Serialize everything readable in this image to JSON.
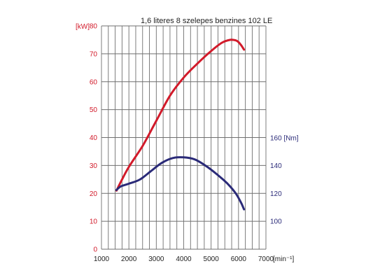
{
  "chart_data": {
    "type": "line",
    "title": "1,6 literes 8 szelepes benzines 102 LE",
    "xlabel": "[min⁻¹]",
    "xlim": [
      1000,
      7000
    ],
    "xticks": [
      "1000",
      "2000",
      "3000",
      "4000",
      "5000",
      "6000",
      "7000"
    ],
    "grid": true,
    "colors": {
      "power": "#d21a2a",
      "torque": "#2a2a78",
      "grid": "#6f6f6f"
    },
    "y_left": {
      "unit": "[kW]",
      "ylim": [
        0,
        80
      ],
      "ticks": [
        "0",
        "10",
        "20",
        "30",
        "40",
        "50",
        "60",
        "70",
        "80"
      ]
    },
    "y_right": {
      "unit": "160 [Nm]",
      "ylim": [
        100,
        160
      ],
      "ticks": [
        "100",
        "120",
        "140"
      ]
    },
    "series": [
      {
        "axis": "left",
        "x": [
          1550,
          1700,
          2000,
          2500,
          3000,
          3500,
          4000,
          4500,
          5000,
          5400,
          5700,
          5900,
          6000,
          6100,
          6200
        ],
        "y": [
          21,
          24,
          29.5,
          37,
          46,
          55,
          61.5,
          66.5,
          71,
          74,
          75,
          74.8,
          74.2,
          73,
          71.5
        ]
      },
      {
        "axis": "right",
        "x": [
          1550,
          1700,
          2000,
          2400,
          2800,
          3200,
          3600,
          4000,
          4400,
          4800,
          5200,
          5600,
          5900,
          6100,
          6200
        ],
        "y": [
          122.5,
          125,
          127,
          130,
          136,
          142,
          145.5,
          146,
          144.5,
          140,
          134,
          127,
          120,
          113,
          108.5
        ]
      }
    ]
  }
}
